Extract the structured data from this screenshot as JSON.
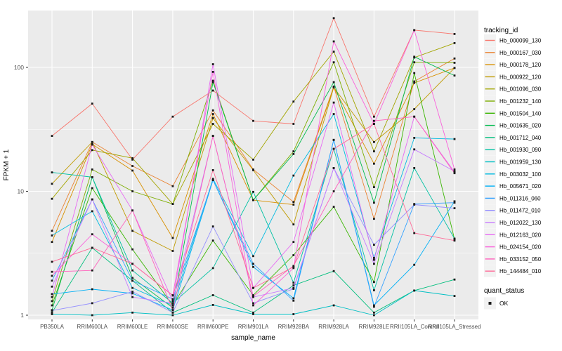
{
  "colors": {
    "panel_bg": "#EBEBEB",
    "grid": "#FFFFFF",
    "point": "#1A1A1A",
    "tick_text": "#4D4D4D",
    "title_text": "#000000",
    "legend_key_bg": "#F2F2F2"
  },
  "legend": {
    "tracking_title": "tracking_id",
    "quant_title": "quant_status",
    "quant_ok_label": "OK"
  },
  "chart_data": {
    "type": "line",
    "xlabel": "sample_name",
    "ylabel": "FPKM + 1",
    "yscale": "log10",
    "ylim": [
      0.93,
      300
    ],
    "y_major_ticks": [
      1,
      10,
      100
    ],
    "y_minor_gridlines": [
      3.162,
      31.62
    ],
    "grid": "on",
    "legend_position": "right",
    "point_shape": "filled-square",
    "quant_status": "OK",
    "categories": [
      "PB350LA",
      "RRIM600LA",
      "RRIM600LE",
      "RRIM600SE",
      "RRIM600PE",
      "RRIM901LA",
      "RRIM928BA",
      "RRIM928LA",
      "RRIM928LE",
      "RRII105LA_Control",
      "RRII105LA_Stressed"
    ],
    "series": [
      {
        "name": "Hb_000099_130",
        "color": "#F8766D",
        "values": [
          28,
          51,
          18,
          40,
          65,
          37,
          35,
          250,
          40,
          200,
          186
        ]
      },
      {
        "name": "Hb_000167_030",
        "color": "#EA8331",
        "values": [
          4.8,
          25,
          16,
          11,
          45,
          15,
          8.2,
          70,
          6,
          77,
          118
        ]
      },
      {
        "name": "Hb_000178_120",
        "color": "#D89000",
        "values": [
          3.9,
          24,
          14.7,
          4.2,
          42,
          8.5,
          7.8,
          69,
          16.7,
          75,
          99
        ]
      },
      {
        "name": "Hb_000922_120",
        "color": "#C09B00",
        "values": [
          11.5,
          25,
          4.8,
          3.3,
          39,
          14.8,
          5.4,
          69,
          25,
          46,
          99
        ]
      },
      {
        "name": "Hb_001096_030",
        "color": "#A3A500",
        "values": [
          8.7,
          21.5,
          18.5,
          7.9,
          35,
          18,
          53,
          134,
          21,
          120,
          157
        ]
      },
      {
        "name": "Hb_001232_140",
        "color": "#7CAE00",
        "values": [
          1.3,
          15,
          10,
          7.9,
          78,
          8.5,
          21,
          110,
          10.8,
          110,
          109
        ]
      },
      {
        "name": "Hb_001504_140",
        "color": "#39B600",
        "values": [
          1.2,
          10.6,
          3.4,
          1.2,
          4.0,
          1.45,
          3.05,
          7.5,
          1.85,
          90,
          4.1
        ]
      },
      {
        "name": "Hb_001635_020",
        "color": "#00BB4E",
        "values": [
          1.1,
          13,
          2.0,
          1.15,
          76,
          8.5,
          20,
          76,
          8.1,
          122,
          86
        ]
      },
      {
        "name": "Hb_001712_040",
        "color": "#00BF7D",
        "values": [
          1.05,
          3.5,
          1.9,
          1.05,
          1.45,
          1.05,
          1.74,
          2.27,
          1.05,
          1.58,
          1.94
        ]
      },
      {
        "name": "Hb_001930_090",
        "color": "#00C1A3",
        "values": [
          14.2,
          13,
          2.3,
          1.25,
          2.4,
          9.9,
          1.83,
          22,
          1.59,
          15.4,
          4.15
        ]
      },
      {
        "name": "Hb_001959_130",
        "color": "#00BFC4",
        "values": [
          1.02,
          1.0,
          1.05,
          1.0,
          1.21,
          1.02,
          1.02,
          1.2,
          1.0,
          1.58,
          1.43
        ]
      },
      {
        "name": "Hb_003032_100",
        "color": "#00BAE0",
        "values": [
          4.4,
          6.9,
          1.66,
          1.2,
          12.6,
          3.0,
          13.4,
          42,
          2.9,
          27,
          26.4
        ]
      },
      {
        "name": "Hb_005671_020",
        "color": "#00B0F6",
        "values": [
          1.48,
          1.62,
          1.5,
          1.1,
          12.3,
          2.45,
          1.37,
          26,
          1.2,
          2.55,
          8.3
        ]
      },
      {
        "name": "Hb_011316_060",
        "color": "#35A2FF",
        "values": [
          1.9,
          8.6,
          1.9,
          1.35,
          12.3,
          2.6,
          1.31,
          26,
          1.17,
          7.9,
          8.1
        ]
      },
      {
        "name": "Hb_011472_010",
        "color": "#9590FF",
        "values": [
          1.09,
          1.25,
          1.55,
          1.05,
          5.2,
          1.25,
          1.63,
          15.4,
          3.7,
          7.8,
          7.3
        ]
      },
      {
        "name": "Hb_012022_130",
        "color": "#C77CFF",
        "values": [
          1.7,
          8.6,
          1.4,
          1.25,
          28,
          1.4,
          1.66,
          15.4,
          2.6,
          21.8,
          14.5
        ]
      },
      {
        "name": "Hb_012163_020",
        "color": "#E76BF3",
        "values": [
          1.4,
          23.8,
          7.0,
          1.3,
          106,
          1.66,
          3.9,
          52,
          2.8,
          40,
          14.3
        ]
      },
      {
        "name": "Hb_024154_020",
        "color": "#FA62DB",
        "values": [
          2.08,
          4.5,
          2.6,
          1.45,
          92,
          1.2,
          2.4,
          162,
          35,
          200,
          15
        ]
      },
      {
        "name": "Hb_033152_050",
        "color": "#FF62BC",
        "values": [
          2.24,
          2.3,
          7.0,
          1.1,
          28,
          1.42,
          2.5,
          10,
          37,
          40,
          14
        ]
      },
      {
        "name": "Hb_144484_010",
        "color": "#FF6A98",
        "values": [
          2.7,
          3.5,
          2.6,
          1.44,
          14.8,
          1.66,
          2.45,
          22,
          35,
          4.6,
          4.0
        ]
      }
    ]
  }
}
